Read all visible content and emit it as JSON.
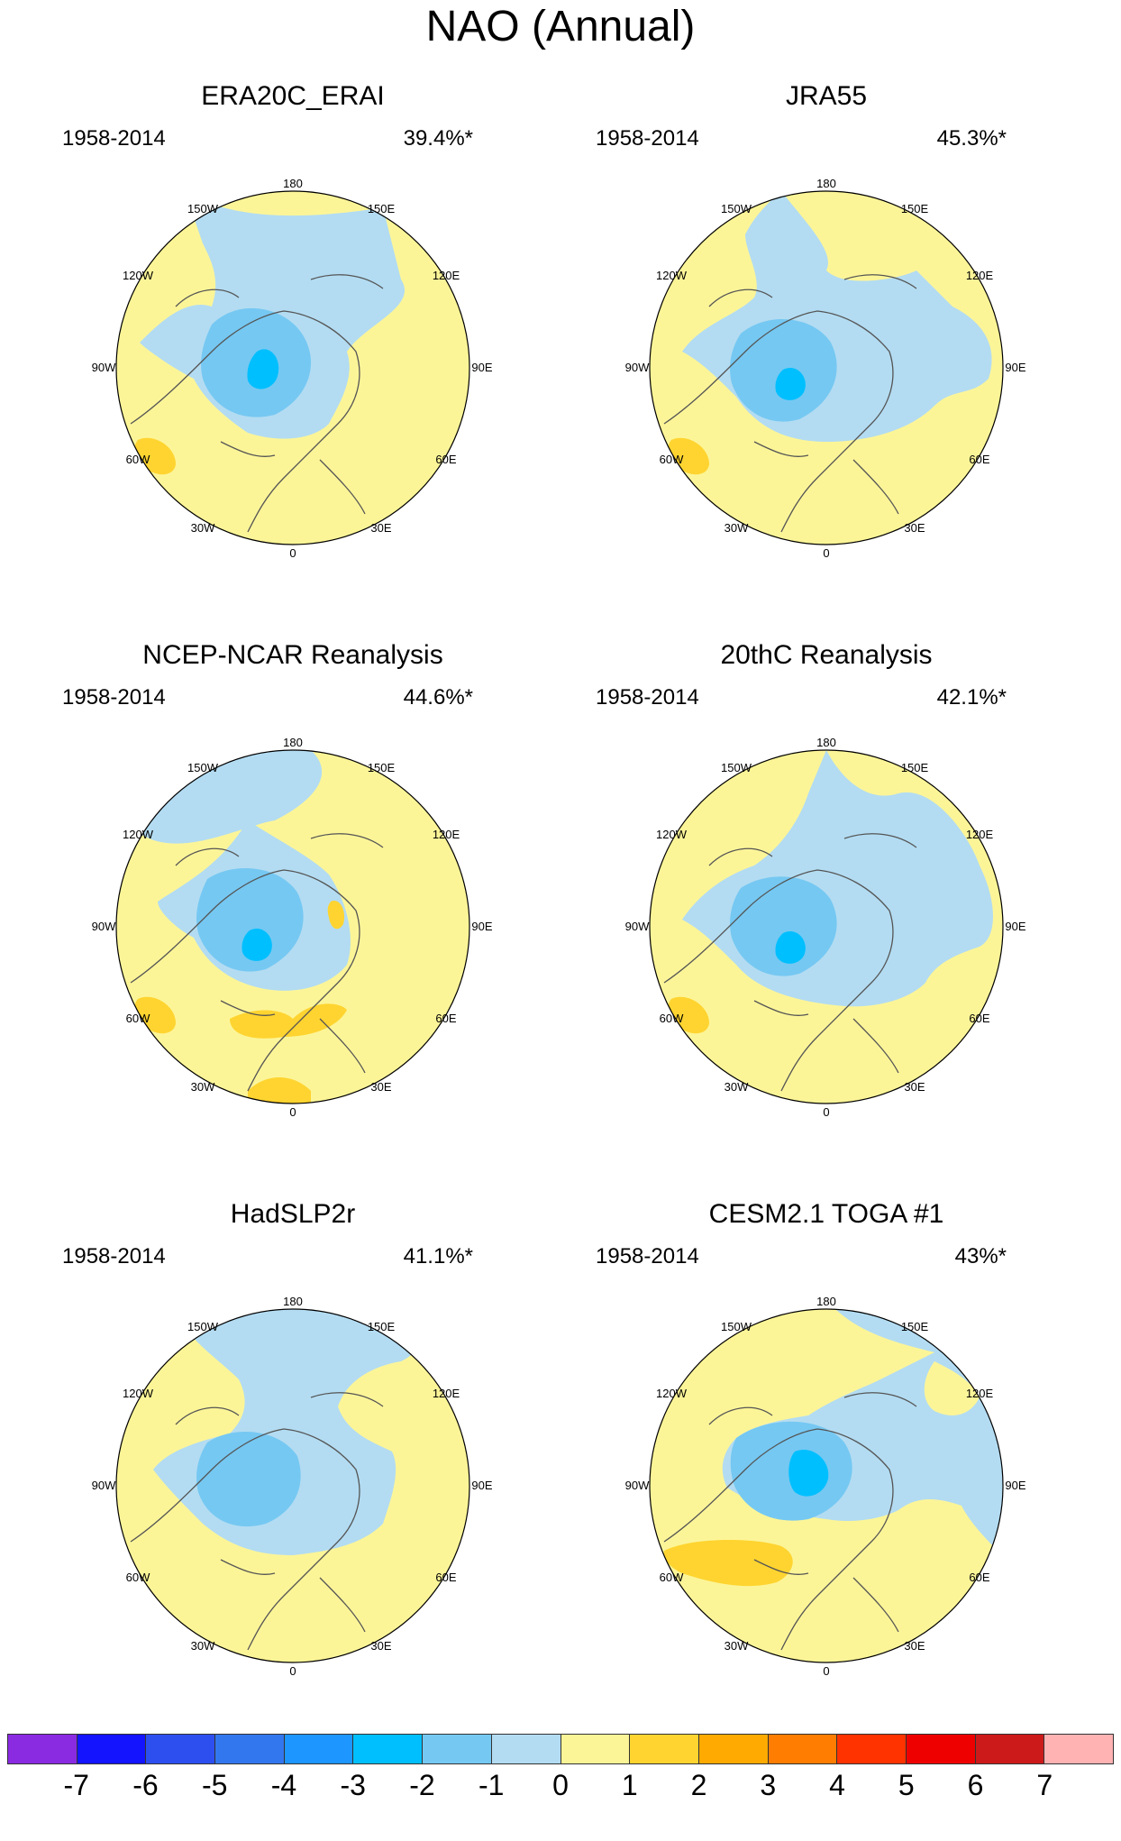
{
  "title": "NAO (Annual)",
  "panels": [
    {
      "name": "ERA20C_ERAI",
      "period": "1958-2014",
      "variance": "39.4%*"
    },
    {
      "name": "JRA55",
      "period": "1958-2014",
      "variance": "45.3%*"
    },
    {
      "name": "NCEP-NCAR Reanalysis",
      "period": "1958-2014",
      "variance": "44.6%*"
    },
    {
      "name": "20thC Reanalysis",
      "period": "1958-2014",
      "variance": "42.1%*"
    },
    {
      "name": "HadSLP2r",
      "period": "1958-2014",
      "variance": "41.1%*"
    },
    {
      "name": "CESM2.1 TOGA #1",
      "period": "1958-2014",
      "variance": "43%*"
    }
  ],
  "longitude_labels": [
    "180",
    "150E",
    "120E",
    "90E",
    "60E",
    "30E",
    "0",
    "30W",
    "60W",
    "90W",
    "120W",
    "150W"
  ],
  "colorbar": {
    "labels": [
      "-7",
      "-6",
      "-5",
      "-4",
      "-3",
      "-2",
      "-1",
      "0",
      "1",
      "2",
      "3",
      "4",
      "5",
      "6",
      "7"
    ],
    "colors": [
      "#8a2be2",
      "#1414ff",
      "#2d4ff0",
      "#3377ee",
      "#1e96ff",
      "#00bfff",
      "#75c8f2",
      "#b3dcf2",
      "#fcf598",
      "#ffd430",
      "#ffaa00",
      "#ff7d00",
      "#ff3300",
      "#ee0000",
      "#cc1a1a",
      "#ffb3b3"
    ]
  },
  "colors": {
    "positive_weak": "#fcf598",
    "positive_moderate": "#ffd430",
    "positive_strong": "#ffaa00",
    "negative_weak": "#b3dcf2",
    "negative_moderate": "#75c8f2",
    "negative_strong": "#00bfff",
    "coastline": "#555555"
  }
}
